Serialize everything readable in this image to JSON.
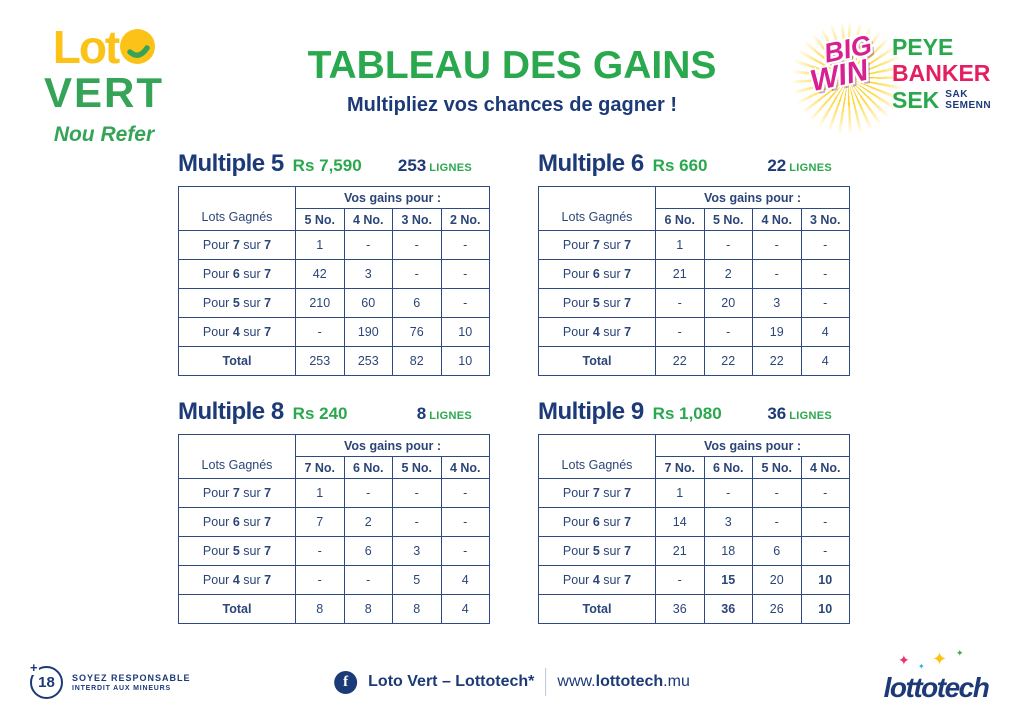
{
  "logo": {
    "loto_prefix": "Lot",
    "vert": "VERT",
    "tagline": "Nou Refer"
  },
  "header": {
    "title": "TABLEAU DES GAINS",
    "subtitle": "Multipliez vos chances de gagner !",
    "bigwin": {
      "big": "BIG",
      "win": "WIN",
      "peye": "PEYE",
      "banker": "BANKER",
      "sek": "SEK",
      "sak": "SAK",
      "semenn": "SEMENN"
    }
  },
  "tables": [
    {
      "title": "Multiple 5",
      "amount": "Rs 7,590",
      "lines_count": "253",
      "lines_label": "LIGNES",
      "corner_label": "Lots Gagnés",
      "gains_label": "Vos gains pour :",
      "columns": [
        "5 No.",
        "4 No.",
        "3 No.",
        "2 No."
      ],
      "rows": [
        {
          "label": [
            "Pour",
            "7",
            "sur",
            "7"
          ],
          "values": [
            "1",
            "-",
            "-",
            "-"
          ]
        },
        {
          "label": [
            "Pour",
            "6",
            "sur",
            "7"
          ],
          "values": [
            "42",
            "3",
            "-",
            "-"
          ]
        },
        {
          "label": [
            "Pour",
            "5",
            "sur",
            "7"
          ],
          "values": [
            "210",
            "60",
            "6",
            "-"
          ]
        },
        {
          "label": [
            "Pour",
            "4",
            "sur",
            "7"
          ],
          "values": [
            "-",
            "190",
            "76",
            "10"
          ]
        },
        {
          "label": [
            "Total"
          ],
          "values": [
            "253",
            "253",
            "82",
            "10"
          ],
          "total": true
        }
      ]
    },
    {
      "title": "Multiple 6",
      "amount": "Rs 660",
      "lines_count": "22",
      "lines_label": "LIGNES",
      "corner_label": "Lots Gagnés",
      "gains_label": "Vos gains pour :",
      "columns": [
        "6 No.",
        "5 No.",
        "4 No.",
        "3 No."
      ],
      "rows": [
        {
          "label": [
            "Pour",
            "7",
            "sur",
            "7"
          ],
          "values": [
            "1",
            "-",
            "-",
            "-"
          ]
        },
        {
          "label": [
            "Pour",
            "6",
            "sur",
            "7"
          ],
          "values": [
            "21",
            "2",
            "-",
            "-"
          ]
        },
        {
          "label": [
            "Pour",
            "5",
            "sur",
            "7"
          ],
          "values": [
            "-",
            "20",
            "3",
            "-"
          ]
        },
        {
          "label": [
            "Pour",
            "4",
            "sur",
            "7"
          ],
          "values": [
            "-",
            "-",
            "19",
            "4"
          ]
        },
        {
          "label": [
            "Total"
          ],
          "values": [
            "22",
            "22",
            "22",
            "4"
          ],
          "total": true
        }
      ]
    },
    {
      "title": "Multiple 8",
      "amount": "Rs 240",
      "lines_count": "8",
      "lines_label": "LIGNES",
      "corner_label": "Lots Gagnés",
      "gains_label": "Vos gains pour :",
      "columns": [
        "7 No.",
        "6 No.",
        "5 No.",
        "4 No."
      ],
      "rows": [
        {
          "label": [
            "Pour",
            "7",
            "sur",
            "7"
          ],
          "values": [
            "1",
            "-",
            "-",
            "-"
          ]
        },
        {
          "label": [
            "Pour",
            "6",
            "sur",
            "7"
          ],
          "values": [
            "7",
            "2",
            "-",
            "-"
          ]
        },
        {
          "label": [
            "Pour",
            "5",
            "sur",
            "7"
          ],
          "values": [
            "-",
            "6",
            "3",
            "-"
          ]
        },
        {
          "label": [
            "Pour",
            "4",
            "sur",
            "7"
          ],
          "values": [
            "-",
            "-",
            "5",
            "4"
          ]
        },
        {
          "label": [
            "Total"
          ],
          "values": [
            "8",
            "8",
            "8",
            "4"
          ],
          "total": true
        }
      ]
    },
    {
      "title": "Multiple 9",
      "amount": "Rs 1,080",
      "lines_count": "36",
      "lines_label": "LIGNES",
      "corner_label": "Lots Gagnés",
      "gains_label": "Vos gains pour :",
      "columns": [
        "7 No.",
        "6 No.",
        "5 No.",
        "4 No."
      ],
      "bold_cells": [
        [
          3,
          1
        ],
        [
          3,
          3
        ],
        [
          4,
          1
        ],
        [
          4,
          3
        ]
      ],
      "rows": [
        {
          "label": [
            "Pour",
            "7",
            "sur",
            "7"
          ],
          "values": [
            "1",
            "-",
            "-",
            "-"
          ]
        },
        {
          "label": [
            "Pour",
            "6",
            "sur",
            "7"
          ],
          "values": [
            "14",
            "3",
            "-",
            "-"
          ]
        },
        {
          "label": [
            "Pour",
            "5",
            "sur",
            "7"
          ],
          "values": [
            "21",
            "18",
            "6",
            "-"
          ]
        },
        {
          "label": [
            "Pour",
            "4",
            "sur",
            "7"
          ],
          "values": [
            "-",
            "15",
            "20",
            "10"
          ]
        },
        {
          "label": [
            "Total"
          ],
          "values": [
            "36",
            "36",
            "26",
            "10"
          ],
          "total": true
        }
      ]
    }
  ],
  "footer": {
    "age": "18",
    "age_plus": "+",
    "responsible_line1": "SOYEZ RESPONSABLE",
    "responsible_line2": "INTERDIT AUX MINEURS",
    "facebook_label": "Loto Vert – Lottotech*",
    "url_prefix": "www.",
    "url_bold": "lottotech",
    "url_suffix": ".mu",
    "lottotech_text": "lottotech"
  },
  "colors": {
    "navy": "#1d3a78",
    "green": "#2aa84e",
    "logo_green": "#35a457",
    "yellow": "#fcc217",
    "magenta": "#d6218f",
    "pink": "#e41e62"
  }
}
